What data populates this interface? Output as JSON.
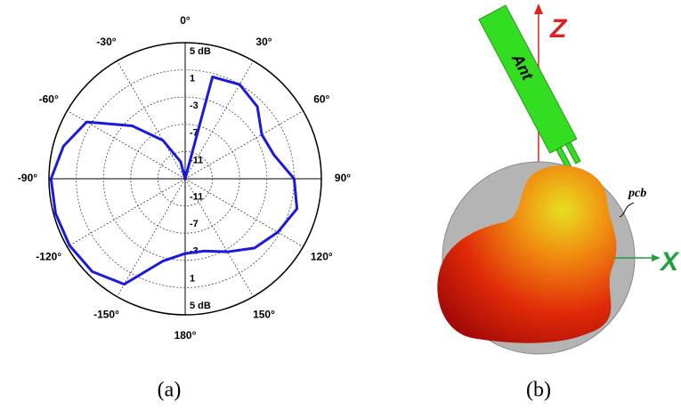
{
  "chart_data": {
    "type": "polar",
    "caption": "(a)",
    "rlim": [
      -15,
      5
    ],
    "rticks": [
      -11,
      -7,
      -3,
      1,
      {
        "value": 5,
        "label": "5 dB"
      }
    ],
    "thetaticks": [
      {
        "value": 0,
        "label": "0°"
      },
      {
        "value": 30,
        "label": "30°"
      },
      {
        "value": 60,
        "label": "60°"
      },
      {
        "value": 90,
        "label": "90°"
      },
      {
        "value": 120,
        "label": "120°"
      },
      {
        "value": 150,
        "label": "150°"
      },
      {
        "value": 180,
        "label": "180°"
      },
      {
        "value": 210,
        "label": "-150°"
      },
      {
        "value": 240,
        "label": "-120°"
      },
      {
        "value": 270,
        "label": "-90°"
      },
      {
        "value": 300,
        "label": "-60°"
      },
      {
        "value": 330,
        "label": "-30°"
      }
    ],
    "series": [
      {
        "color": "#1a1adc",
        "theta": [
          0,
          15,
          30,
          45,
          60,
          75,
          90,
          105,
          120,
          135,
          150,
          165,
          180,
          195,
          210,
          225,
          240,
          255,
          270,
          285,
          300,
          315,
          330,
          345
        ],
        "values": [
          -15,
          0.5,
          1,
          0,
          -2,
          -1.5,
          1,
          2,
          0.7,
          -0.6,
          -2.6,
          -4,
          -4,
          -2.5,
          2.9,
          4.3,
          4.6,
          4.7,
          4.7,
          3.5,
          1.7,
          -4,
          -8.5,
          -12.4
        ]
      }
    ]
  },
  "panel_b": {
    "z_label": "Z",
    "x_label": "X",
    "antenna_label": "Ant",
    "pcb_label": "pcb",
    "caption": "(b)"
  }
}
